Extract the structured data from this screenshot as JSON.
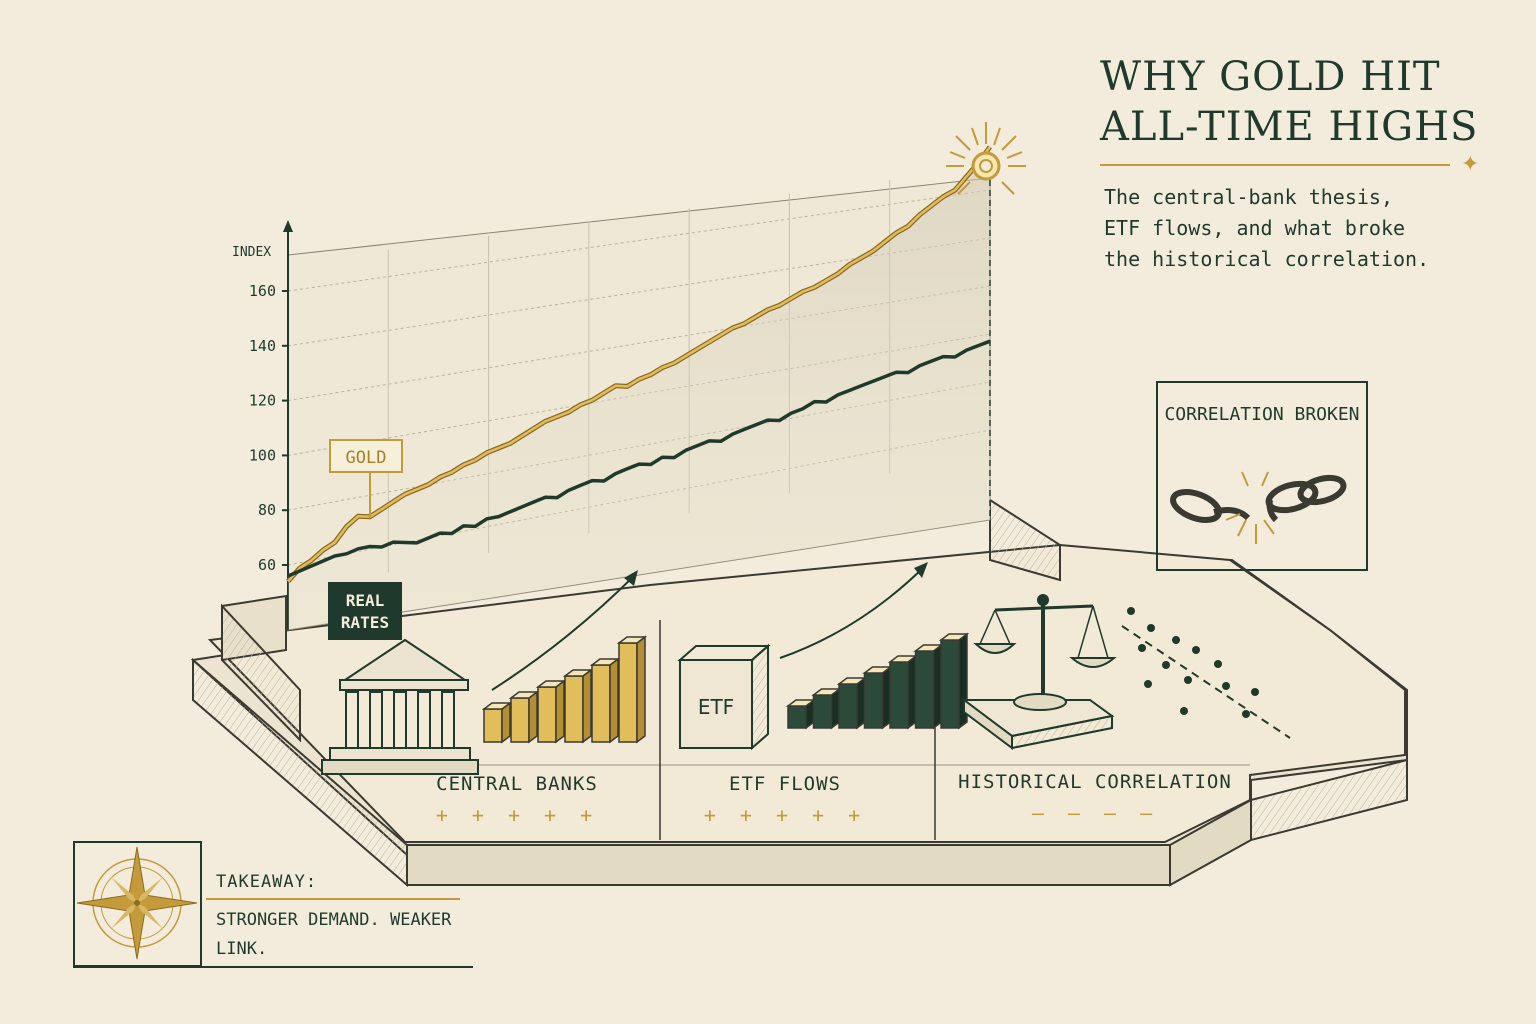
{
  "header": {
    "title": "WHY GOLD HIT ALL-TIME HIGHS",
    "subtitle": "The central-bank thesis, ETF flows, and what broke the historical correlation."
  },
  "chart_data": {
    "type": "line",
    "ylabel": "INDEX",
    "yticks": [
      60,
      80,
      100,
      120,
      140,
      160
    ],
    "x": [
      0,
      1,
      2,
      3,
      4,
      5,
      6,
      7,
      8,
      9,
      10,
      11,
      12,
      13,
      14,
      15,
      16,
      17,
      18,
      19,
      20,
      21,
      22,
      23,
      24,
      25,
      26,
      27,
      28,
      29,
      30,
      31,
      32,
      33,
      34,
      35,
      36,
      37,
      38,
      39,
      40,
      41,
      42,
      43,
      44,
      45,
      46,
      47,
      48,
      49,
      50,
      51,
      52,
      53,
      54,
      55,
      56,
      57,
      58,
      59,
      60
    ],
    "series": [
      {
        "name": "GOLD",
        "color": "#c49a3a",
        "values": [
          54,
          58,
          60,
          63,
          65,
          70,
          73,
          72,
          74,
          76,
          78,
          79,
          80,
          82,
          83,
          85,
          86,
          88,
          89,
          90,
          92,
          94,
          96,
          97,
          98,
          100,
          101,
          103,
          105,
          104,
          106,
          107,
          109,
          110,
          112,
          114,
          116,
          118,
          120,
          121,
          123,
          125,
          126,
          128,
          130,
          131,
          133,
          135,
          138,
          140,
          142,
          145,
          148,
          150,
          154,
          157,
          160,
          162,
          167,
          172,
          178
        ]
      },
      {
        "name": "REAL RATES",
        "color": "#1f3a2c",
        "values": [
          56,
          57,
          58,
          59,
          60,
          60,
          61,
          61,
          60,
          61,
          60,
          59,
          60,
          61,
          60,
          62,
          61,
          63,
          63,
          64,
          65,
          66,
          67,
          66,
          68,
          69,
          70,
          69,
          71,
          72,
          73,
          72,
          74,
          73,
          75,
          76,
          77,
          76,
          78,
          79,
          80,
          81,
          80,
          82,
          83,
          85,
          84,
          86,
          87,
          88,
          89,
          90,
          91,
          90,
          92,
          93,
          94,
          93,
          95,
          96,
          97
        ]
      }
    ],
    "ylim": [
      50,
      170
    ],
    "grid": true
  },
  "sections": [
    {
      "label": "CENTRAL BANKS",
      "marks": "+ + + + +",
      "icon": "bank-icon",
      "bars": [
        3,
        4,
        5,
        6,
        7,
        9
      ]
    },
    {
      "label": "ETF FLOWS",
      "marks": "+ + + + +",
      "icon": "etf-box-icon",
      "box_text": "ETF",
      "bars": [
        2,
        3,
        4,
        5,
        6,
        7,
        8
      ]
    },
    {
      "label": "HISTORICAL CORRELATION",
      "marks": "— — — —",
      "icon": "scale-icon"
    }
  ],
  "correlation": {
    "label": "CORRELATION BROKEN",
    "icon": "broken-chain-icon"
  },
  "takeaway": {
    "heading": "TAKEAWAY:",
    "text": "STRONGER DEMAND. WEAKER LINK.",
    "icon": "compass-rose-icon"
  },
  "colors": {
    "gold": "#c49a3a",
    "green": "#1f3a2c",
    "paper": "#f3ecdc"
  }
}
